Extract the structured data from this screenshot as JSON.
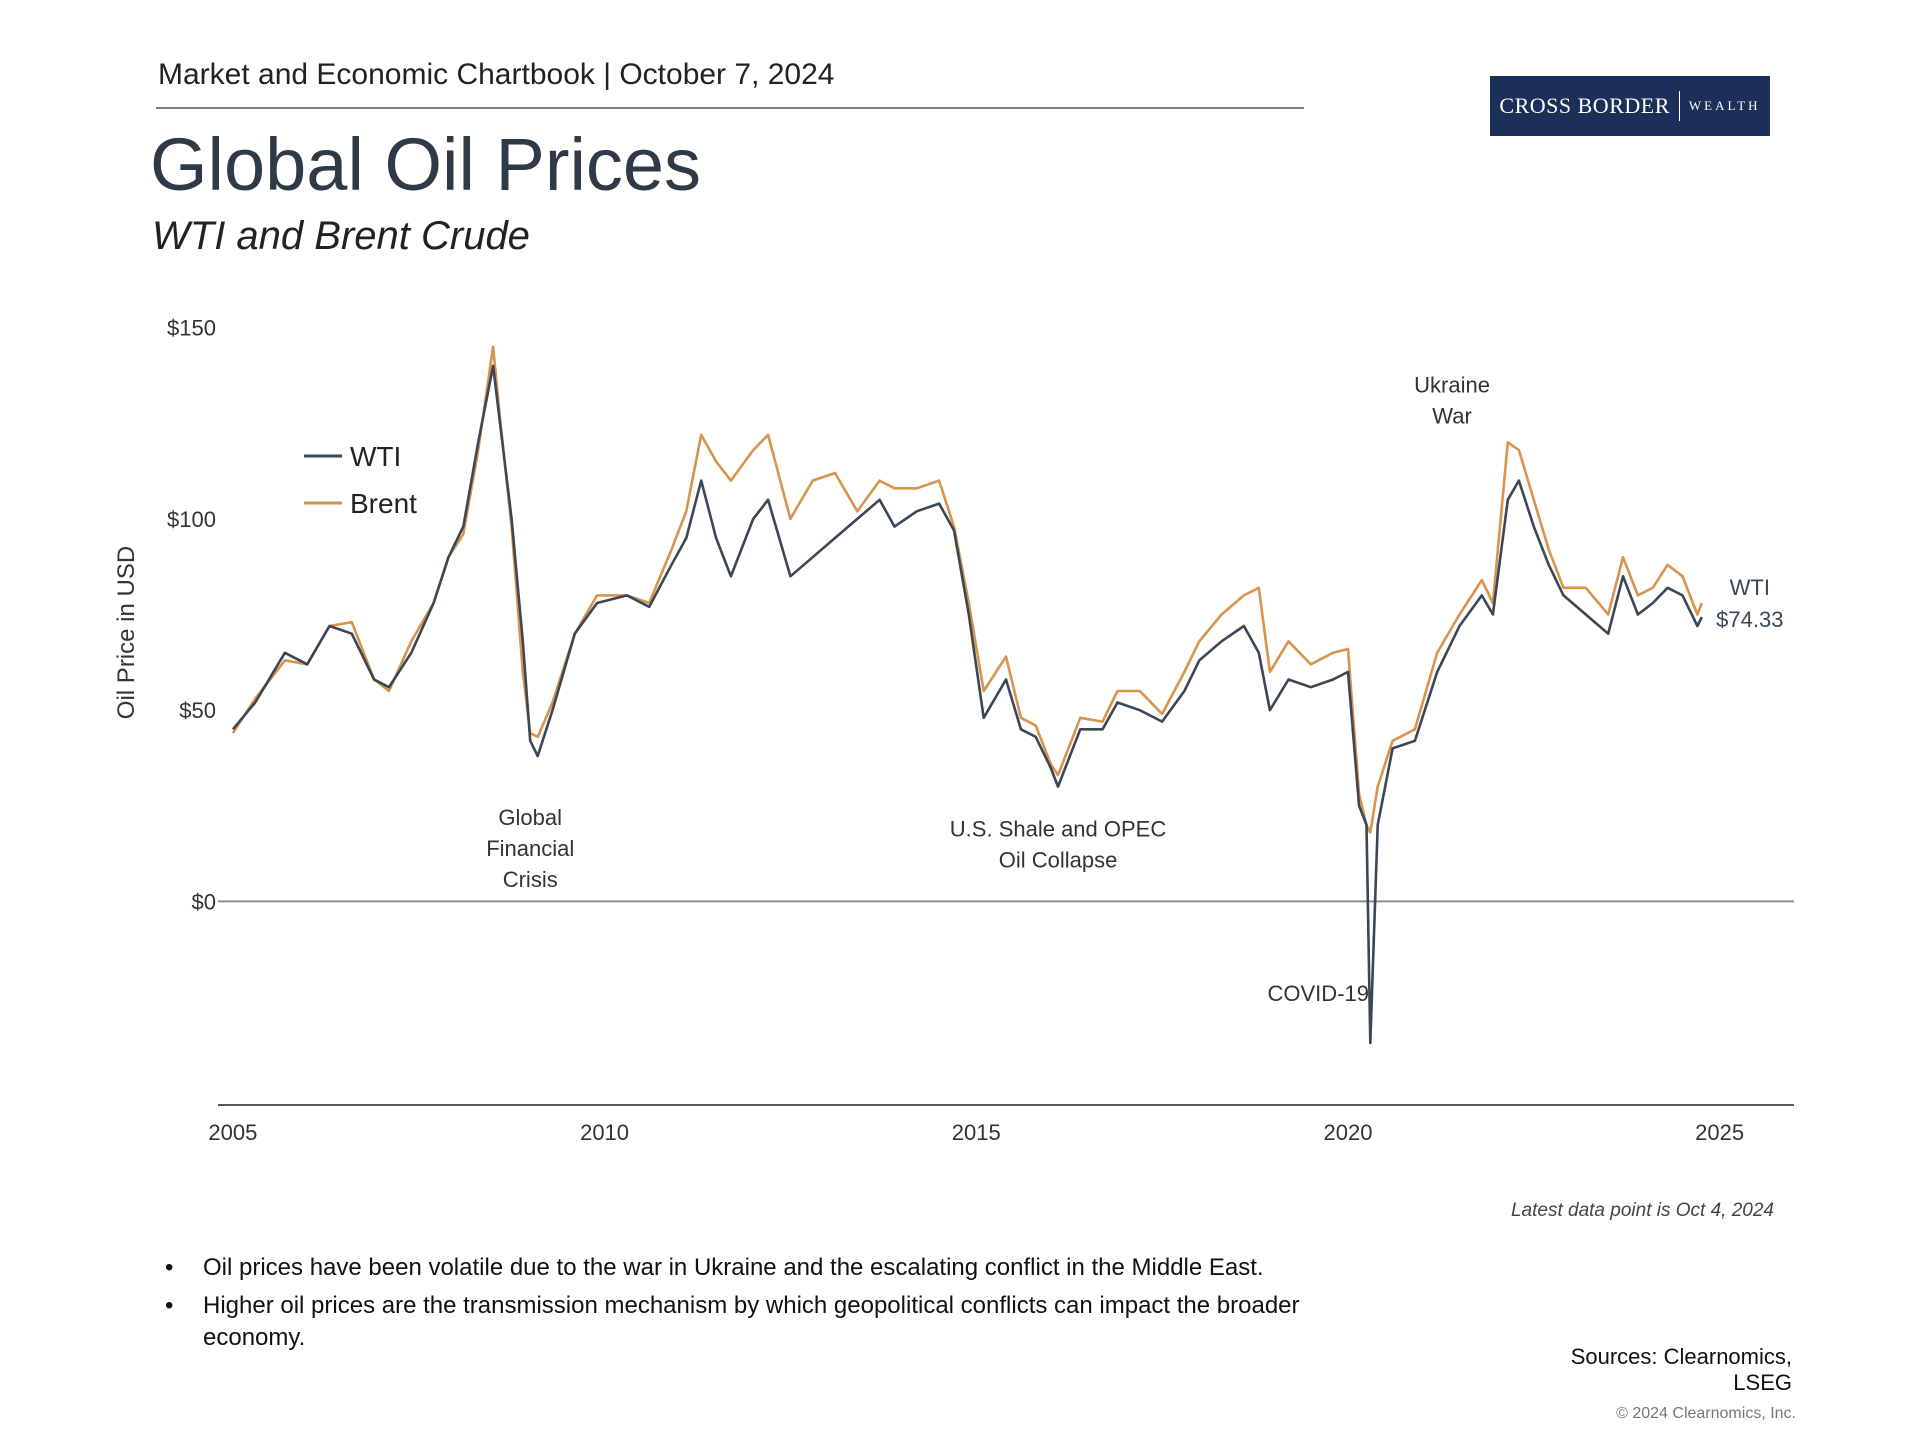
{
  "header": {
    "text": "Market and Economic Chartbook | October 7, 2024",
    "title": "Global Oil Prices",
    "subtitle": "WTI and Brent Crude"
  },
  "logo": {
    "main": "CROSS BORDER",
    "sub": "WEALTH",
    "bg_color": "#1b2f59"
  },
  "chart_data": {
    "type": "line",
    "title": "Global Oil Prices",
    "subtitle": "WTI and Brent Crude",
    "xlabel": "",
    "ylabel": "Oil Price in USD",
    "xlim": [
      2004.8,
      2026.0
    ],
    "ylim": [
      -48,
      152
    ],
    "y_ticks": [
      0,
      50,
      100,
      150
    ],
    "y_tick_labels": [
      "$0",
      "$50",
      "$100",
      "$150"
    ],
    "x_ticks": [
      2005,
      2010,
      2015,
      2020,
      2025
    ],
    "x_tick_labels": [
      "2005",
      "2010",
      "2015",
      "2020",
      "2025"
    ],
    "legend": {
      "position": "top-left",
      "entries": [
        "WTI",
        "Brent"
      ]
    },
    "series": [
      {
        "name": "WTI",
        "color": "#3b4656",
        "x": [
          2005.0,
          2005.3,
          2005.7,
          2006.0,
          2006.3,
          2006.6,
          2006.9,
          2007.1,
          2007.4,
          2007.7,
          2007.9,
          2008.1,
          2008.3,
          2008.5,
          2008.6,
          2008.75,
          2008.9,
          2009.0,
          2009.1,
          2009.3,
          2009.6,
          2009.9,
          2010.3,
          2010.6,
          2010.9,
          2011.1,
          2011.3,
          2011.5,
          2011.7,
          2012.0,
          2012.2,
          2012.5,
          2012.8,
          2013.1,
          2013.4,
          2013.7,
          2013.9,
          2014.2,
          2014.5,
          2014.7,
          2014.9,
          2015.1,
          2015.4,
          2015.6,
          2015.8,
          2016.0,
          2016.1,
          2016.4,
          2016.7,
          2016.9,
          2017.2,
          2017.5,
          2017.8,
          2018.0,
          2018.3,
          2018.6,
          2018.8,
          2018.95,
          2019.2,
          2019.5,
          2019.8,
          2020.0,
          2020.15,
          2020.25,
          2020.3,
          2020.4,
          2020.6,
          2020.9,
          2021.2,
          2021.5,
          2021.8,
          2021.95,
          2022.15,
          2022.3,
          2022.5,
          2022.7,
          2022.9,
          2023.2,
          2023.5,
          2023.7,
          2023.9,
          2024.1,
          2024.3,
          2024.5,
          2024.7,
          2024.76
        ],
        "values": [
          45,
          52,
          65,
          62,
          72,
          70,
          58,
          56,
          65,
          78,
          90,
          98,
          120,
          140,
          124,
          100,
          68,
          42,
          38,
          50,
          70,
          78,
          80,
          77,
          88,
          95,
          110,
          95,
          85,
          100,
          105,
          85,
          90,
          95,
          100,
          105,
          98,
          102,
          104,
          97,
          75,
          48,
          58,
          45,
          43,
          35,
          30,
          45,
          45,
          52,
          50,
          47,
          55,
          63,
          68,
          72,
          65,
          50,
          58,
          56,
          58,
          60,
          25,
          20,
          -37,
          20,
          40,
          42,
          60,
          72,
          80,
          75,
          105,
          110,
          98,
          88,
          80,
          75,
          70,
          85,
          75,
          78,
          82,
          80,
          72,
          74.33
        ]
      },
      {
        "name": "Brent",
        "color": "#d8934c",
        "x": [
          2005.0,
          2005.3,
          2005.7,
          2006.0,
          2006.3,
          2006.6,
          2006.9,
          2007.1,
          2007.4,
          2007.7,
          2007.9,
          2008.1,
          2008.3,
          2008.5,
          2008.6,
          2008.75,
          2008.9,
          2009.0,
          2009.1,
          2009.3,
          2009.6,
          2009.9,
          2010.3,
          2010.6,
          2010.9,
          2011.1,
          2011.3,
          2011.5,
          2011.7,
          2012.0,
          2012.2,
          2012.5,
          2012.8,
          2013.1,
          2013.4,
          2013.7,
          2013.9,
          2014.2,
          2014.5,
          2014.7,
          2014.9,
          2015.1,
          2015.4,
          2015.6,
          2015.8,
          2016.0,
          2016.1,
          2016.4,
          2016.7,
          2016.9,
          2017.2,
          2017.5,
          2017.8,
          2018.0,
          2018.3,
          2018.6,
          2018.8,
          2018.95,
          2019.2,
          2019.5,
          2019.8,
          2020.0,
          2020.15,
          2020.25,
          2020.3,
          2020.4,
          2020.6,
          2020.9,
          2021.2,
          2021.5,
          2021.8,
          2021.95,
          2022.15,
          2022.3,
          2022.5,
          2022.7,
          2022.9,
          2023.2,
          2023.5,
          2023.7,
          2023.9,
          2024.1,
          2024.3,
          2024.5,
          2024.7,
          2024.76
        ],
        "values": [
          44,
          53,
          63,
          62,
          72,
          73,
          58,
          55,
          68,
          78,
          90,
          96,
          118,
          145,
          125,
          98,
          60,
          44,
          43,
          52,
          70,
          80,
          80,
          78,
          92,
          102,
          122,
          115,
          110,
          118,
          122,
          100,
          110,
          112,
          102,
          110,
          108,
          108,
          110,
          98,
          78,
          55,
          64,
          48,
          46,
          36,
          33,
          48,
          47,
          55,
          55,
          49,
          60,
          68,
          75,
          80,
          82,
          60,
          68,
          62,
          65,
          66,
          28,
          20,
          18,
          30,
          42,
          45,
          65,
          75,
          84,
          78,
          120,
          118,
          105,
          92,
          82,
          82,
          75,
          90,
          80,
          82,
          88,
          85,
          75,
          78
        ]
      }
    ],
    "annotations": [
      {
        "text": [
          "Global",
          "Financial",
          "Crisis"
        ],
        "x": 2009.0,
        "y": 20
      },
      {
        "text": [
          "U.S. Shale and OPEC",
          "Oil Collapse"
        ],
        "x": 2016.1,
        "y": 17
      },
      {
        "text": [
          "COVID-19"
        ],
        "x": 2019.6,
        "y": -26
      },
      {
        "text": [
          "Ukraine",
          "War"
        ],
        "x": 2021.4,
        "y": 133
      }
    ],
    "end_label": {
      "series": "WTI",
      "name": "WTI",
      "value_text": "$74.33"
    }
  },
  "footnote": "Latest data point is Oct 4, 2024",
  "bullets": [
    "Oil prices have been volatile due to the war in Ukraine and the escalating conflict in the Middle East.",
    "Higher oil prices are the transmission mechanism by which geopolitical conflicts can impact the broader economy."
  ],
  "sources": "Sources: Clearnomics, LSEG",
  "copyright": "© 2024 Clearnomics, Inc."
}
